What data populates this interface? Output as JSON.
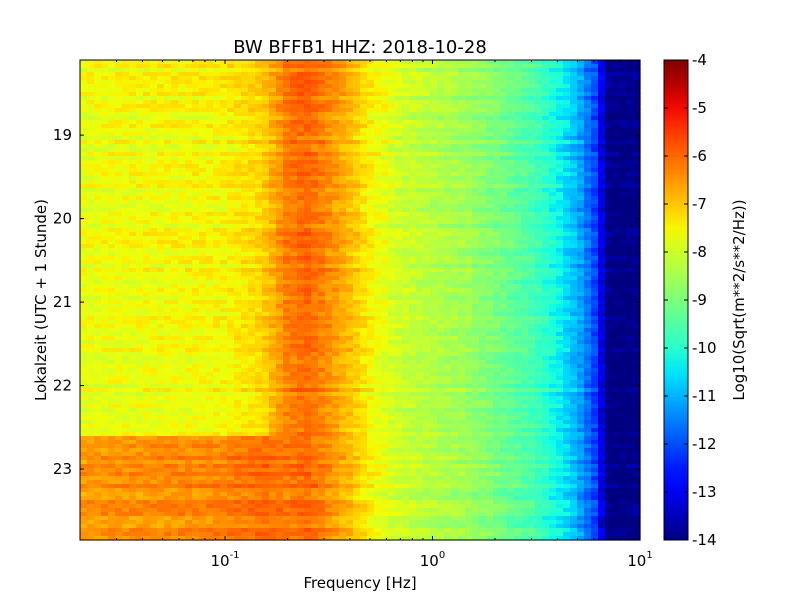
{
  "chart_data": {
    "type": "heatmap",
    "title": "BW BFFB1 HHZ: 2018-10-28",
    "xlabel": "Frequency [Hz]",
    "ylabel": "Lokalzeit (UTC + 1 Stunde)",
    "colorbar_label": "Log10(Sqrt(m**2/s**2/Hz))",
    "colormap": "jet",
    "x_scale": "log",
    "xlim": [
      0.02,
      10
    ],
    "ylim": [
      18.1,
      23.85
    ],
    "y_inverted": true,
    "clim": [
      -14,
      -4
    ],
    "grid": false,
    "x_tick_labels": [
      {
        "base": "10",
        "exp": "-1"
      },
      {
        "base": "10",
        "exp": "0"
      },
      {
        "base": "10",
        "exp": "1"
      }
    ],
    "y_tick_labels": [
      "19",
      "20",
      "21",
      "22",
      "23"
    ],
    "colorbar_tick_labels": [
      "-4",
      "-5",
      "-6",
      "-7",
      "-8",
      "-9",
      "-10",
      "-11",
      "-12",
      "-13",
      "-14"
    ],
    "spectrum_profile": {
      "frequency_hz": [
        0.02,
        0.05,
        0.1,
        0.15,
        0.2,
        0.25,
        0.3,
        0.4,
        0.5,
        0.7,
        1.0,
        1.5,
        2.0,
        3.0,
        4.0,
        5.0,
        6.0,
        7.0,
        10.0
      ],
      "value": [
        -7.7,
        -7.6,
        -7.5,
        -7.2,
        -6.2,
        -6.0,
        -6.3,
        -6.9,
        -7.5,
        -8.0,
        -8.3,
        -8.6,
        -9.0,
        -9.6,
        -10.3,
        -11.0,
        -12.0,
        -14.0,
        -14.0
      ]
    },
    "elevated_period": {
      "start_hour": 22.6,
      "value_offset": 1.2
    }
  }
}
